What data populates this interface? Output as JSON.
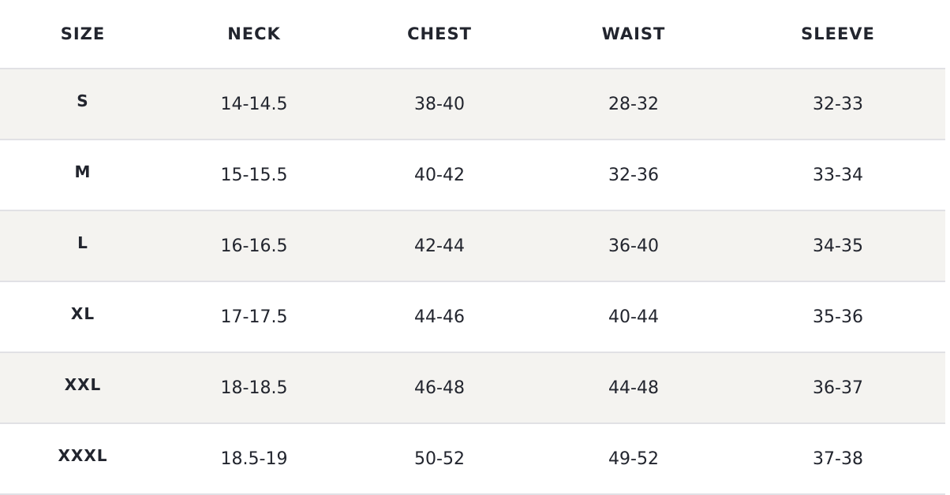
{
  "headers": [
    "SIZE",
    "NECK",
    "CHEST",
    "WAIST",
    "SLEEVE"
  ],
  "rows": [
    [
      "S",
      "14-14.5",
      "38-40",
      "28-32",
      "32-33"
    ],
    [
      "M",
      "15-15.5",
      "40-42",
      "32-36",
      "33-34"
    ],
    [
      "L",
      "16-16.5",
      "42-44",
      "36-40",
      "34-35"
    ],
    [
      "XL",
      "17-17.5",
      "44-46",
      "40-44",
      "35-36"
    ],
    [
      "XXL",
      "18-18.5",
      "46-48",
      "44-48",
      "36-37"
    ],
    [
      "XXXL",
      "18.5-19",
      "50-52",
      "49-52",
      "37-38"
    ]
  ],
  "colors": {
    "text": "#22252e",
    "stripe": "#f4f3f0",
    "border": "#e1e1e5"
  }
}
